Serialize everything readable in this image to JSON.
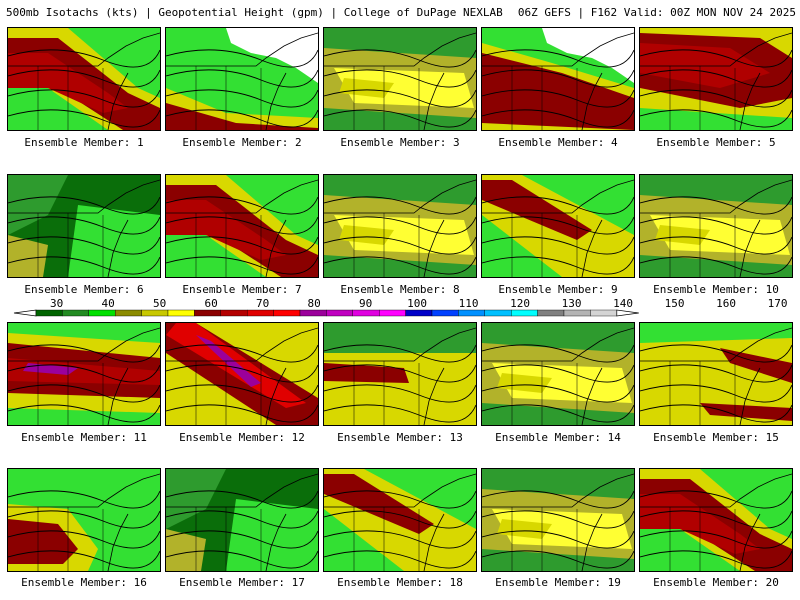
{
  "header": {
    "title_left": "500mb Isotachs (kts) | Geopotential Height (gpm) | College of DuPage NEXLAB",
    "title_right": "06Z GEFS | F162 Valid: 00Z MON NOV 24 2025"
  },
  "panels": [
    {
      "label": "Ensemble Member: 1",
      "regime": "jet-nw-strong"
    },
    {
      "label": "Ensemble Member: 2",
      "regime": "jet-south-band"
    },
    {
      "label": "Ensemble Member: 3",
      "regime": "weak-yellow"
    },
    {
      "label": "Ensemble Member: 4",
      "regime": "jet-broad-strong"
    },
    {
      "label": "Ensemble Member: 5",
      "regime": "jet-north-strong"
    },
    {
      "label": "Ensemble Member: 6",
      "regime": "weak-green"
    },
    {
      "label": "Ensemble Member: 7",
      "regime": "jet-nw-strong"
    },
    {
      "label": "Ensemble Member: 8",
      "regime": "weak-yellow"
    },
    {
      "label": "Ensemble Member: 9",
      "regime": "jet-nw-band"
    },
    {
      "label": "Ensemble Member: 10",
      "regime": "weak-yellow"
    },
    {
      "label": "Ensemble Member: 11",
      "regime": "jet-zonal-strong"
    },
    {
      "label": "Ensemble Member: 12",
      "regime": "jet-diagonal-core"
    },
    {
      "label": "Ensemble Member: 13",
      "regime": "jet-west-band"
    },
    {
      "label": "Ensemble Member: 14",
      "regime": "weak-yellow"
    },
    {
      "label": "Ensemble Member: 15",
      "regime": "jet-east-bands"
    },
    {
      "label": "Ensemble Member: 16",
      "regime": "jet-sw-blob"
    },
    {
      "label": "Ensemble Member: 17",
      "regime": "weak-green"
    },
    {
      "label": "Ensemble Member: 18",
      "regime": "jet-nw-band"
    },
    {
      "label": "Ensemble Member: 19",
      "regime": "weak-yellow"
    },
    {
      "label": "Ensemble Member: 20",
      "regime": "jet-nw-strong"
    }
  ],
  "colorbar": {
    "ticks": [
      "30",
      "40",
      "50",
      "60",
      "70",
      "80",
      "90",
      "100",
      "110",
      "120",
      "130",
      "140",
      "150",
      "160",
      "170"
    ],
    "colors": [
      "#006400",
      "#228b22",
      "#00e000",
      "#8b8b00",
      "#c8c800",
      "#ffff00",
      "#8b0000",
      "#b40000",
      "#e00000",
      "#ff0000",
      "#9b009b",
      "#c000c0",
      "#e000e0",
      "#ff00ff",
      "#0000c8",
      "#0040ff",
      "#0090ff",
      "#00c0ff",
      "#00ffff",
      "#808080",
      "#b4b4b4",
      "#d4d4d4"
    ]
  }
}
